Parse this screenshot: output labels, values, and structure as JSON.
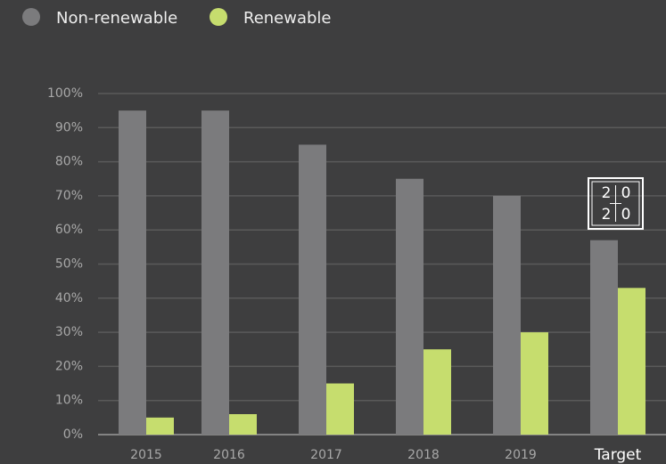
{
  "chart_data": {
    "type": "bar",
    "categories": [
      "2015",
      "2016",
      "2017",
      "2018",
      "2019",
      "Target"
    ],
    "series": [
      {
        "name": "Non-renewable",
        "color": "#7b7b7d",
        "values": [
          95,
          95,
          85,
          75,
          70,
          57
        ]
      },
      {
        "name": "Renewable",
        "color": "#c6dd6e",
        "values": [
          5,
          6,
          15,
          25,
          30,
          43
        ]
      }
    ],
    "ylim": [
      0,
      100
    ],
    "yticks": [
      {
        "value": 0,
        "label": "0%"
      },
      {
        "value": 10,
        "label": "10%"
      },
      {
        "value": 20,
        "label": "20%"
      },
      {
        "value": 30,
        "label": "30%"
      },
      {
        "value": 40,
        "label": "40%"
      },
      {
        "value": 50,
        "label": "50%"
      },
      {
        "value": 60,
        "label": "60%"
      },
      {
        "value": 70,
        "label": "70%"
      },
      {
        "value": 80,
        "label": "80%"
      },
      {
        "value": 90,
        "label": "90%"
      },
      {
        "value": 100,
        "label": "100%"
      }
    ],
    "grid": true,
    "legend": "top-left",
    "annotation": [
      "2",
      "0",
      "2",
      "0"
    ]
  }
}
